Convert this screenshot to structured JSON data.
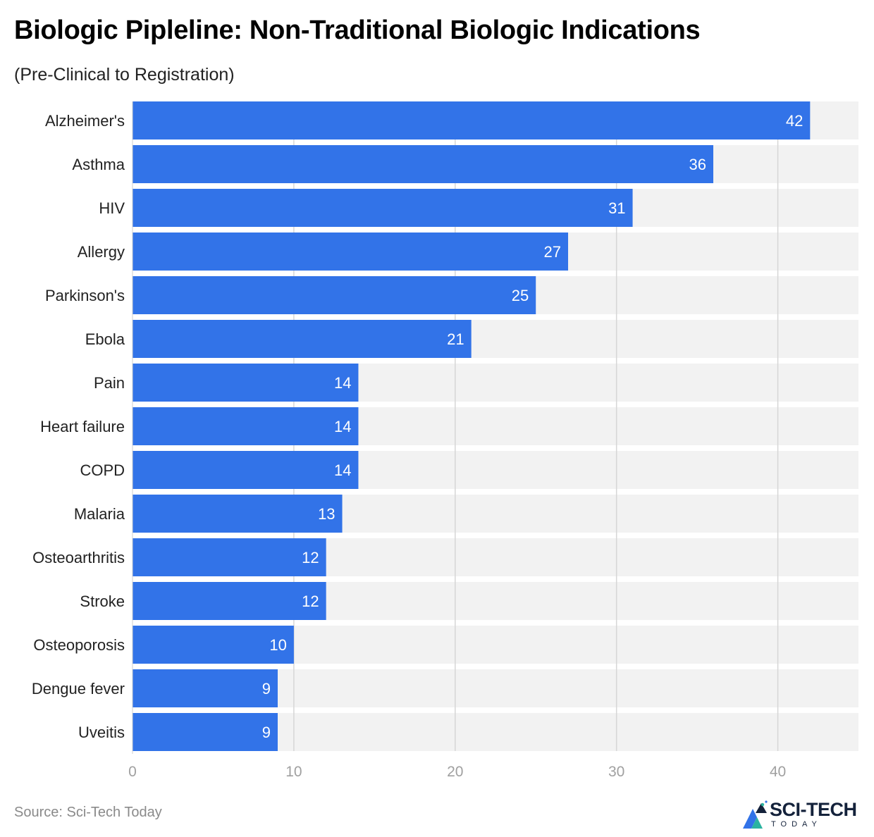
{
  "header": {
    "title": "Biologic Pipleline: Non-Traditional Biologic Indications",
    "subtitle": "(Pre-Clinical to Registration)"
  },
  "footer": {
    "source": "Source: Sci-Tech Today",
    "logo_text": "SCI-TECH",
    "logo_subtext": "TODAY"
  },
  "colors": {
    "bar": "#3273e8",
    "track": "#f2f2f2",
    "grid": "#d6d6d6",
    "value_label": "#ffffff",
    "tick_label": "#a0a0a0"
  },
  "chart_data": {
    "type": "bar",
    "orientation": "horizontal",
    "categories": [
      "Alzheimer's",
      "Asthma",
      "HIV",
      "Allergy",
      "Parkinson's",
      "Ebola",
      "Pain",
      "Heart failure",
      "COPD",
      "Malaria",
      "Osteoarthritis",
      "Stroke",
      "Osteoporosis",
      "Dengue fever",
      "Uveitis"
    ],
    "values": [
      42,
      36,
      31,
      27,
      25,
      21,
      14,
      14,
      14,
      13,
      12,
      12,
      10,
      9,
      9
    ],
    "xlim": [
      0,
      45
    ],
    "xticks": [
      0,
      10,
      20,
      30,
      40
    ],
    "grid": true,
    "data_labels": true,
    "legend": "none"
  }
}
